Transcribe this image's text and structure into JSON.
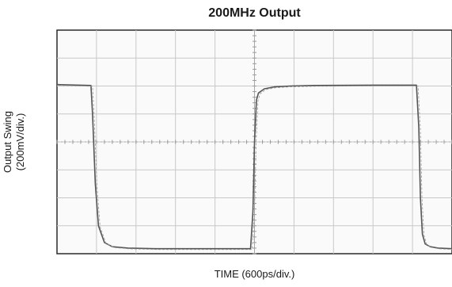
{
  "chart_data": {
    "type": "line",
    "title": "200MHz Output",
    "xlabel": "TIME (600ps/div.)",
    "ylabel": [
      "Output Swing",
      "(200mV/div.)"
    ],
    "x_divisions": 10,
    "y_divisions": 8,
    "xlim": [
      0,
      10
    ],
    "ylim": [
      -4,
      4
    ],
    "grid": true,
    "series": [
      {
        "x": [
          0,
          0.86,
          0.9,
          0.97,
          1.05,
          1.2,
          1.4,
          1.8,
          2.5,
          4.0,
          4.9,
          4.96,
          5.0,
          5.05,
          5.1,
          5.25,
          5.5,
          5.9,
          6.5,
          8.0,
          9.1,
          9.16,
          9.2,
          9.25,
          9.32,
          9.45,
          9.65,
          10.0
        ],
        "y": [
          2.05,
          2.02,
          1.0,
          -1.5,
          -3.0,
          -3.6,
          -3.75,
          -3.8,
          -3.82,
          -3.82,
          -3.82,
          -2.5,
          0.0,
          1.5,
          1.75,
          1.9,
          1.97,
          2.0,
          2.02,
          2.03,
          2.03,
          0.5,
          -2.0,
          -3.3,
          -3.65,
          -3.75,
          -3.8,
          -3.82
        ]
      }
    ]
  }
}
